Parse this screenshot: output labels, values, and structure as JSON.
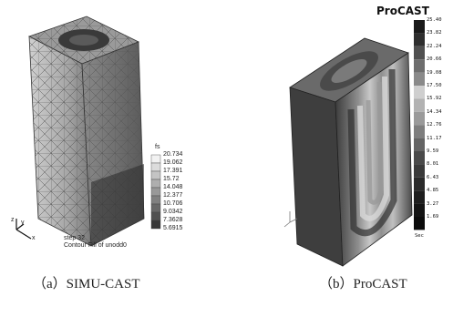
{
  "left_figure": {
    "legend_title": "fs",
    "legend_values": [
      "20.734",
      "19.062",
      "17.391",
      "15.72",
      "14.048",
      "12.377",
      "10.706",
      "9.0342",
      "7.3628",
      "5.6915"
    ],
    "step_label": "step 32",
    "contour_label": "Contour Fill of unodd0",
    "axis_x": "x",
    "axis_y": "y",
    "axis_z": "z",
    "caption": "（a）SIMU-CAST"
  },
  "right_figure": {
    "brand": "ProCAST",
    "legend_values": [
      "25.40",
      "23.82",
      "22.24",
      "20.66",
      "19.08",
      "17.50",
      "15.92",
      "14.34",
      "12.76",
      "11.17",
      "9.59",
      "8.01",
      "6.43",
      "4.85",
      "3.27",
      "1.69"
    ],
    "unit": "Sec",
    "caption": "（b）ProCAST"
  },
  "colors": {
    "mesh_light": "#d6d6d6",
    "mesh_dark": "#2a2a2a",
    "procast_dark": "#3a3a3a"
  }
}
